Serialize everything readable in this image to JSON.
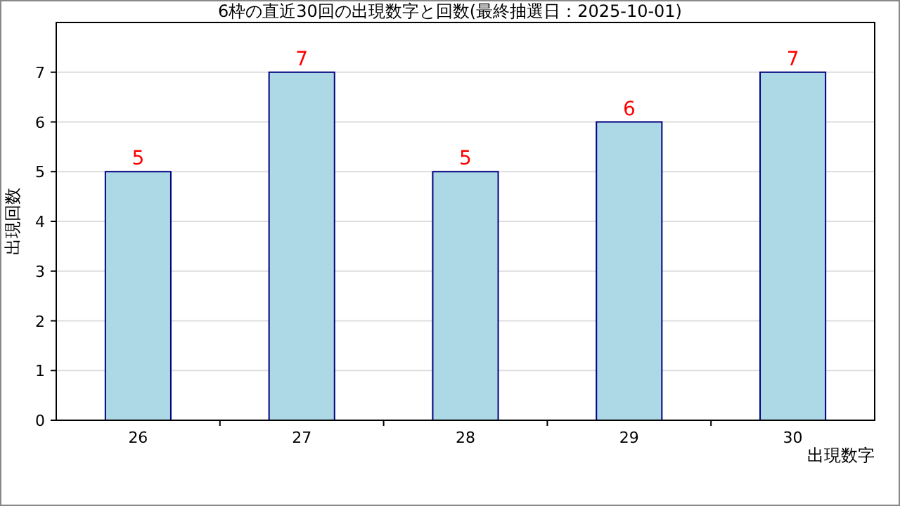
{
  "chart_data": {
    "type": "bar",
    "title": "6枠の直近30回の出現数字と回数(最終抽選日：2025-10-01)",
    "categories": [
      "26",
      "27",
      "28",
      "29",
      "30"
    ],
    "values": [
      5,
      7,
      5,
      6,
      7
    ],
    "color": "#add8e6",
    "xlabel": "出現数字",
    "ylabel": "出現回数",
    "ylim": [
      0,
      8
    ],
    "yticks": [
      0,
      1,
      2,
      3,
      4,
      5,
      6,
      7
    ],
    "grid": "y",
    "data_labels": true
  }
}
